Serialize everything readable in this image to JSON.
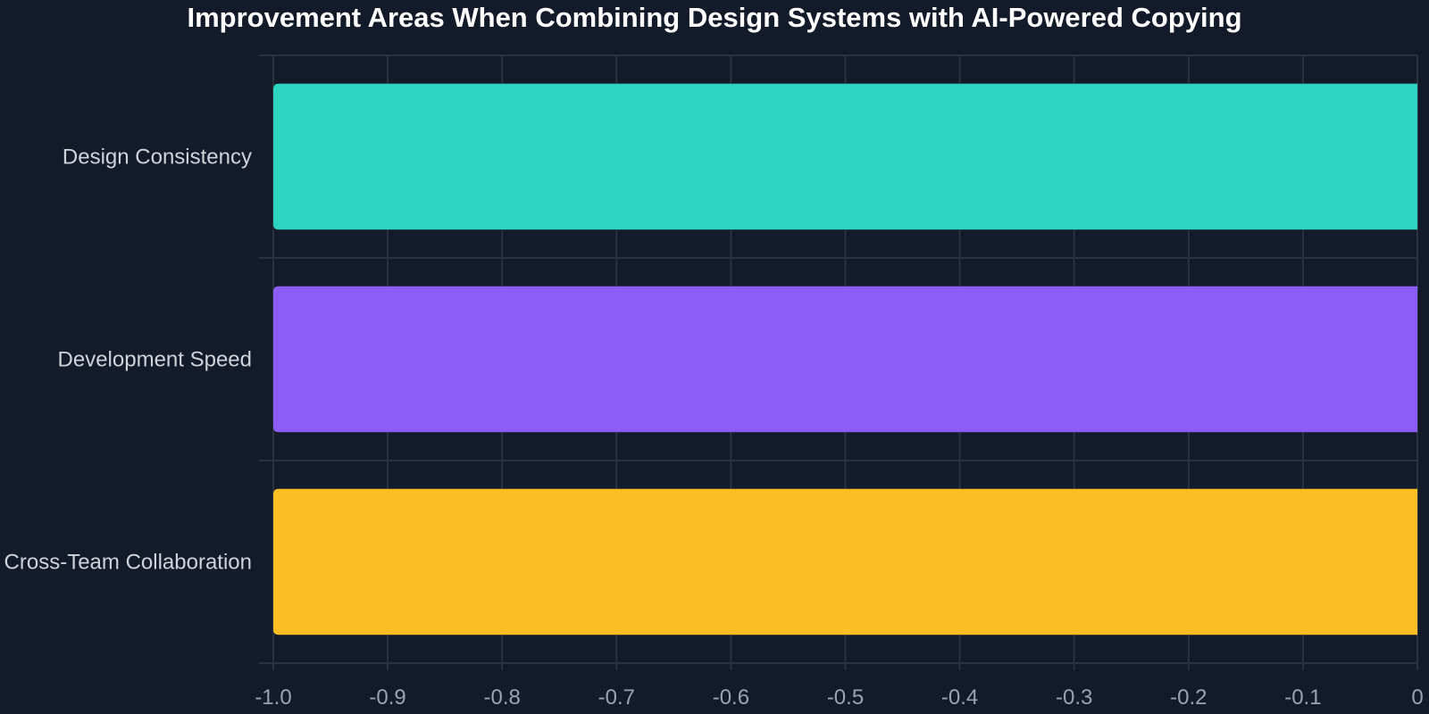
{
  "chart_data": {
    "type": "bar",
    "orientation": "horizontal",
    "title": "Improvement Areas When Combining Design Systems with AI-Powered Copying",
    "categories": [
      "Design Consistency",
      "Development Speed",
      "Cross-Team Collaboration"
    ],
    "values": [
      -1.0,
      -1.0,
      -1.0
    ],
    "xlim": [
      -1.0,
      0
    ],
    "x_ticks": [
      "-1.0",
      "-0.9",
      "-0.8",
      "-0.7",
      "-0.6",
      "-0.5",
      "-0.4",
      "-0.3",
      "-0.2",
      "-0.1",
      "0"
    ],
    "xlabel": "",
    "ylabel": "",
    "grid": true,
    "legend": "none",
    "colors": {
      "background": "#131a29",
      "grid": "#2a3241",
      "bars": [
        "#2dd4bf",
        "#8b5cf6",
        "#fbbf24"
      ],
      "tick_text": "#9ba3b1",
      "category_text": "#cfd3da",
      "title_text": "#ffffff"
    }
  }
}
